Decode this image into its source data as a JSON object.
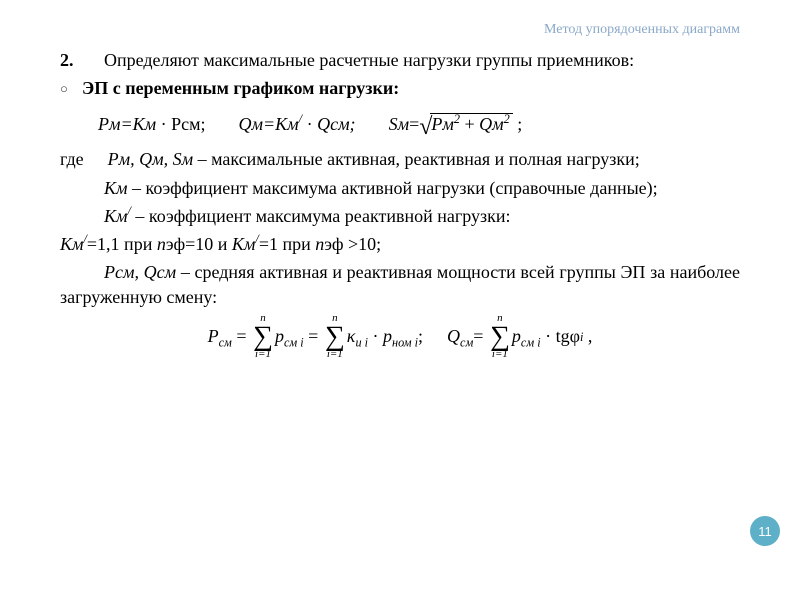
{
  "header": {
    "title": "Метод упорядоченных диаграмм"
  },
  "item": {
    "num": "2.",
    "text": "Определяют максимальные расчетные нагрузки группы приемников:"
  },
  "bullet": {
    "text": "ЭП с переменным графиком нагрузки"
  },
  "formulas": {
    "p": "Pм=Kм",
    "p2": "Pсм;",
    "q": "Qм=Kм",
    "q2": "Qсм;",
    "s_lhs": "Sм",
    "s_rad1": "Pм",
    "s_rad2": "Qм"
  },
  "defs": {
    "where": "где",
    "d1a": "Pм, Qм, Sм",
    "d1b": " – максимальные активная, реактивная и полная нагрузки;",
    "d2a": "Kм",
    "d2b": " – коэффициент максимума активной нагрузки (справочные данные);",
    "d3a": "Kм",
    "d3b": " – коэффициент максимума реактивной нагрузки:",
    "d4_a": "Kм",
    "d4_b": "=1,1 при ",
    "d4_c": "n",
    "d4_d": "эф=10 и ",
    "d4_e": "Kм",
    "d4_f": "=1 при ",
    "d4_g": "n",
    "d4_h": "эф >10;",
    "d5a": "Pсм, Qсм",
    "d5b": " – средняя активная и реактивная мощности всей группы ЭП за наиболее загруженную смену:"
  },
  "sum": {
    "lhs1": "P",
    "lhs1_sub": "см",
    "term1": "p",
    "term1_sub": "см i",
    "term2a": "κ",
    "term2a_sub": "и i",
    "term2b": "p",
    "term2b_sub": "ном i",
    "lhs2": "Q",
    "lhs2_sub": "см",
    "term3": "p",
    "term3_sub": "см i",
    "tg": "tgφ",
    "tg_sub": "i",
    "n": "n",
    "i1": "i=1"
  },
  "page": "11",
  "colors": {
    "header": "#8aa8c8",
    "badge_bg": "#5db0c7",
    "badge_fg": "#ffffff",
    "text": "#000000",
    "bg": "#ffffff"
  },
  "typography": {
    "body_fontsize": 18,
    "header_fontsize": 14,
    "font_family": "Georgia / Times serif"
  }
}
